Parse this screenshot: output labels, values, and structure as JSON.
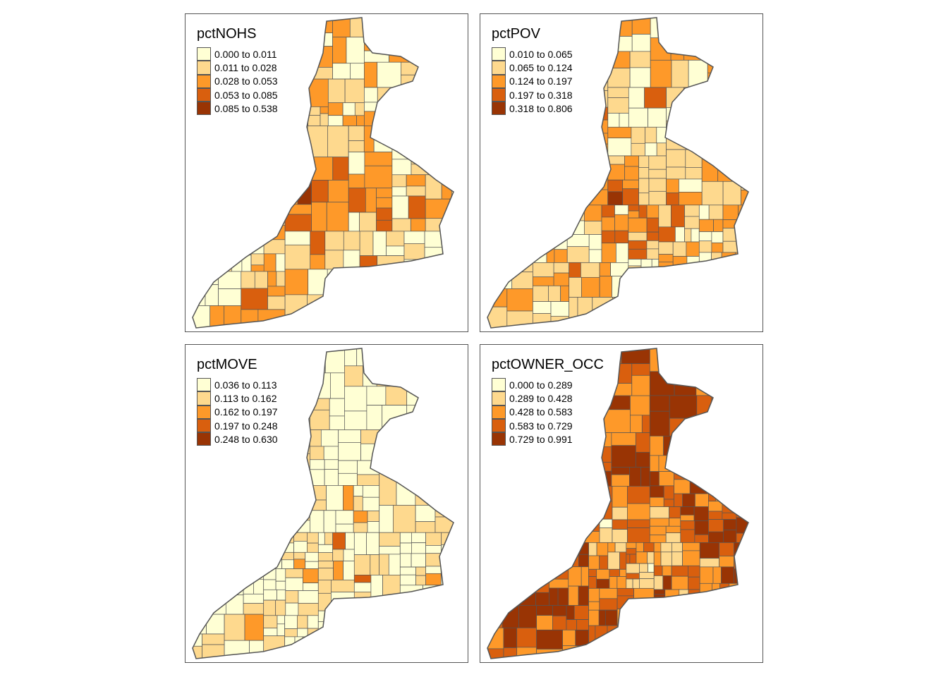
{
  "colors": {
    "classes": [
      "#FFFFD4",
      "#FED98E",
      "#FE9929",
      "#D95F0E",
      "#993404"
    ],
    "outline": "#555555",
    "frame": "#555555"
  },
  "panels": [
    {
      "title": "pctNOHS",
      "legend": [
        "0.000 to 0.011",
        "0.011 to 0.028",
        "0.028 to 0.053",
        "0.053 to 0.085",
        "0.085 to 0.538"
      ],
      "pattern_seed": 11,
      "base_level": 1
    },
    {
      "title": "pctPOV",
      "legend": [
        "0.010 to 0.065",
        "0.065 to 0.124",
        "0.124 to 0.197",
        "0.197 to 0.318",
        "0.318 to 0.806"
      ],
      "pattern_seed": 23,
      "base_level": 1
    },
    {
      "title": "pctMOVE",
      "legend": [
        "0.036 to 0.113",
        "0.113 to 0.162",
        "0.162 to 0.197",
        "0.197 to 0.248",
        "0.248 to 0.630"
      ],
      "pattern_seed": 37,
      "base_level": 0
    },
    {
      "title": "pctOWNER_OCC",
      "legend": [
        "0.000 to 0.289",
        "0.289 to 0.428",
        "0.428 to 0.583",
        "0.583 to 0.729",
        "0.729 to 0.991"
      ],
      "pattern_seed": 53,
      "base_level": 3
    }
  ]
}
